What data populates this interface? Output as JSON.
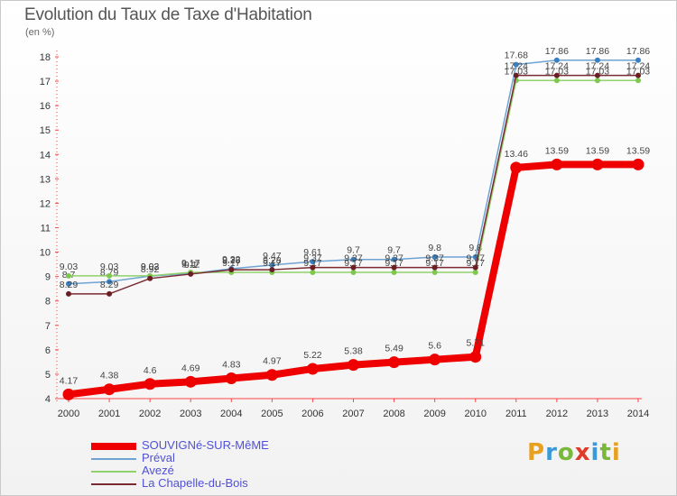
{
  "title": "Evolution du Taux de Taxe d'Habitation",
  "unit_label": "(en %)",
  "logo": {
    "letters": [
      "P",
      "r",
      "o",
      "x",
      "i",
      "t",
      "i"
    ],
    "colors": [
      "#e8a020",
      "#3a9ad9",
      "#7ab83b",
      "#e23a2a",
      "#3a9ad9",
      "#7ab83b",
      "#e8a020"
    ]
  },
  "chart_data": {
    "type": "line",
    "x": [
      2000,
      2001,
      2002,
      2003,
      2004,
      2005,
      2006,
      2007,
      2008,
      2009,
      2010,
      2011,
      2012,
      2013,
      2014
    ],
    "ylim": [
      4,
      18
    ],
    "yticks": [
      4,
      5,
      6,
      7,
      8,
      9,
      10,
      11,
      12,
      13,
      14,
      15,
      16,
      17,
      18
    ],
    "grid": false,
    "legend_position": "bottom-left",
    "series": [
      {
        "name": "SOUVIGNé-SUR-MêME",
        "color": "#ee0000",
        "thick": true,
        "values": [
          4.17,
          4.38,
          4.6,
          4.69,
          4.83,
          4.97,
          5.22,
          5.38,
          5.49,
          5.6,
          5.71,
          13.46,
          13.59,
          13.59,
          13.59
        ],
        "labels": [
          "4.17",
          "4.38",
          "4.6",
          "4.69",
          "4.83",
          "4.97",
          "5.22",
          "5.38",
          "5.49",
          "5.6",
          "5.71",
          "13.46",
          "13.59",
          "13.59",
          "13.59"
        ]
      },
      {
        "name": "Préval",
        "color": "#6fa3d3",
        "marker": "#3a7fc0",
        "values": [
          8.7,
          8.79,
          9.02,
          9.12,
          9.32,
          9.47,
          9.61,
          9.7,
          9.7,
          9.8,
          9.8,
          17.68,
          17.86,
          17.86,
          17.86
        ],
        "labels": [
          "8.7",
          "8.79",
          "9.02",
          "9.12",
          "9.32",
          "9.47",
          "9.61",
          "9.7",
          "9.7",
          "9.8",
          "9.8",
          "17.68",
          "17.86",
          "17.86",
          "17.86"
        ]
      },
      {
        "name": "Avezé",
        "color": "#8fd16a",
        "marker": "#7ec850",
        "values": [
          9.03,
          9.03,
          9.03,
          9.17,
          9.17,
          9.17,
          9.17,
          9.17,
          9.17,
          9.17,
          9.17,
          17.03,
          17.03,
          17.03,
          17.03
        ],
        "labels": [
          "9.03",
          "9.03",
          "9.03",
          "9.17",
          "9.17",
          "9.17",
          "9.17",
          "9.17",
          "9.17",
          "9.17",
          "9.17",
          "17.03",
          "17.03",
          "17.03",
          "17.03"
        ]
      },
      {
        "name": "La Chapelle-du-Bois",
        "color": "#7a2a30",
        "marker": "#6b1f25",
        "values": [
          8.29,
          8.29,
          8.92,
          9.1,
          9.28,
          9.28,
          9.37,
          9.37,
          9.37,
          9.37,
          9.37,
          17.24,
          17.24,
          17.24,
          17.24
        ],
        "labels": [
          "8.29",
          "8.29",
          "8.92",
          "9.1",
          "9.28",
          "9.28",
          "9.37",
          "9.37",
          "9.37",
          "9.37",
          "9.37",
          "17.24",
          "17.24",
          "17.24",
          "17.24"
        ]
      }
    ]
  }
}
